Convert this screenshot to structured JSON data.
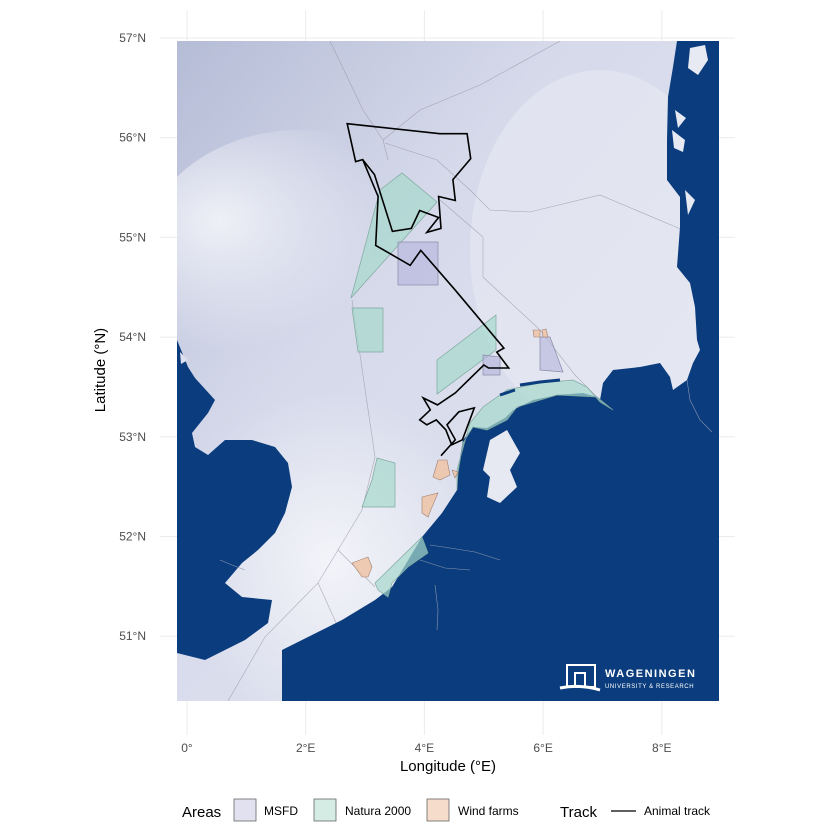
{
  "map": {
    "xlabel": "Longitude (°E)",
    "ylabel": "Latitude (°N)",
    "x_ticks": [
      {
        "value": 0,
        "label": "0°"
      },
      {
        "value": 2,
        "label": "2°E"
      },
      {
        "value": 4,
        "label": "4°E"
      },
      {
        "value": 6,
        "label": "6°E"
      },
      {
        "value": 8,
        "label": "8°E"
      }
    ],
    "y_ticks": [
      {
        "value": 51,
        "label": "51°N"
      },
      {
        "value": 52,
        "label": "52°N"
      },
      {
        "value": 53,
        "label": "53°N"
      },
      {
        "value": 54,
        "label": "54°N"
      },
      {
        "value": 55,
        "label": "55°N"
      },
      {
        "value": 56,
        "label": "56°N"
      },
      {
        "value": 57,
        "label": "57°N"
      }
    ],
    "colors": {
      "land": "#0b3d7e",
      "sea": "#d5d9ea",
      "msfd": "#e1e1f0",
      "natura_2000": "#d4ece4",
      "wind_farms": "#f5dccb",
      "track": "#000000"
    },
    "track_lonlat": [
      [
        4.28,
        52.81
      ],
      [
        4.52,
        52.97
      ],
      [
        4.38,
        53.12
      ],
      [
        4.58,
        53.25
      ],
      [
        4.84,
        53.29
      ],
      [
        4.64,
        52.97
      ],
      [
        4.46,
        52.92
      ],
      [
        4.36,
        53.07
      ],
      [
        4.2,
        53.17
      ],
      [
        4.04,
        53.12
      ],
      [
        3.92,
        53.17
      ],
      [
        4.1,
        53.27
      ],
      [
        3.98,
        53.39
      ],
      [
        4.22,
        53.32
      ],
      [
        4.52,
        53.44
      ],
      [
        5.0,
        53.72
      ],
      [
        5.08,
        53.69
      ],
      [
        5.42,
        53.69
      ],
      [
        5.22,
        53.85
      ],
      [
        5.34,
        53.89
      ],
      [
        4.52,
        54.47
      ],
      [
        3.94,
        54.87
      ],
      [
        3.76,
        54.72
      ],
      [
        3.18,
        54.92
      ],
      [
        3.22,
        55.41
      ],
      [
        2.96,
        55.78
      ],
      [
        2.84,
        55.76
      ],
      [
        2.7,
        56.14
      ],
      [
        4.26,
        56.04
      ],
      [
        4.72,
        56.04
      ],
      [
        4.78,
        55.79
      ],
      [
        4.48,
        55.58
      ],
      [
        4.52,
        55.37
      ],
      [
        4.24,
        55.41
      ],
      [
        4.28,
        55.09
      ],
      [
        4.04,
        55.05
      ],
      [
        4.24,
        55.2
      ],
      [
        3.92,
        55.27
      ],
      [
        3.78,
        55.09
      ],
      [
        3.46,
        55.06
      ],
      [
        3.16,
        55.63
      ],
      [
        2.96,
        55.78
      ]
    ],
    "logo": {
      "line1": "WAGENINGEN",
      "line2": "UNIVERSITY & RESEARCH"
    }
  },
  "legend": {
    "areas_title": "Areas",
    "areas": [
      {
        "label": "MSFD",
        "color": "#e1e1f0"
      },
      {
        "label": "Natura 2000",
        "color": "#d4ece4"
      },
      {
        "label": "Wind farms",
        "color": "#f5dccb"
      }
    ],
    "track_title": "Track",
    "track_label": "Animal track"
  }
}
